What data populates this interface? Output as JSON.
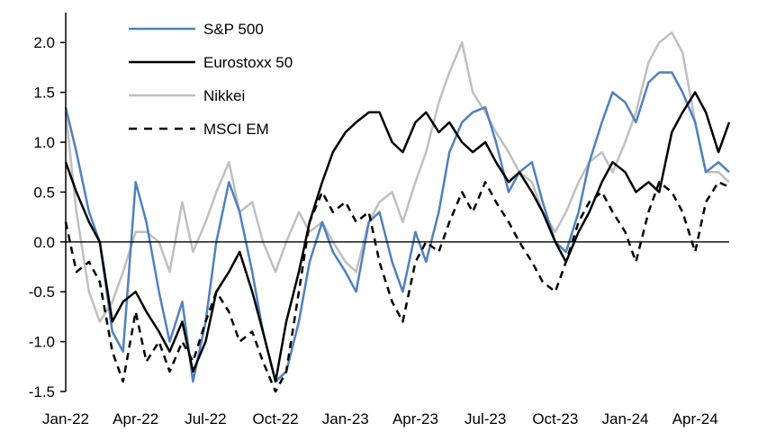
{
  "chart_data": {
    "type": "line",
    "title": "",
    "xlabel": "",
    "ylabel": "",
    "ylim": [
      -1.5,
      2.3
    ],
    "yticks": [
      "2.0",
      "1.5",
      "1.0",
      "0.5",
      "0.0",
      "-0.5",
      "-1.0",
      "-1.5"
    ],
    "ytick_values": [
      2.0,
      1.5,
      1.0,
      0.5,
      0.0,
      -0.5,
      -1.0,
      -1.5
    ],
    "xticks": [
      "Jan-22",
      "Apr-22",
      "Jul-22",
      "Oct-22",
      "Jan-23",
      "Apr-23",
      "Jul-23",
      "Oct-23",
      "Jan-24",
      "Apr-24"
    ],
    "xtick_dates": [
      "2022-01-01",
      "2022-04-01",
      "2022-07-01",
      "2022-10-01",
      "2023-01-01",
      "2023-04-01",
      "2023-07-01",
      "2023-10-01",
      "2024-01-01",
      "2024-04-01"
    ],
    "xlim": [
      "2022-01-01",
      "2024-05-15"
    ],
    "grid": false,
    "zero_line": true,
    "legend_placement": "top-left",
    "x": [
      "2022-01-01",
      "2022-01-15",
      "2022-02-01",
      "2022-02-15",
      "2022-03-01",
      "2022-03-15",
      "2022-04-01",
      "2022-04-15",
      "2022-05-01",
      "2022-05-15",
      "2022-06-01",
      "2022-06-15",
      "2022-07-01",
      "2022-07-15",
      "2022-08-01",
      "2022-08-15",
      "2022-09-01",
      "2022-09-15",
      "2022-10-01",
      "2022-10-15",
      "2022-11-01",
      "2022-11-15",
      "2022-12-01",
      "2022-12-15",
      "2023-01-01",
      "2023-01-15",
      "2023-02-01",
      "2023-02-15",
      "2023-03-01",
      "2023-03-15",
      "2023-04-01",
      "2023-04-15",
      "2023-05-01",
      "2023-05-15",
      "2023-06-01",
      "2023-06-15",
      "2023-07-01",
      "2023-07-15",
      "2023-08-01",
      "2023-08-15",
      "2023-09-01",
      "2023-09-15",
      "2023-10-01",
      "2023-10-15",
      "2023-11-01",
      "2023-11-15",
      "2023-12-01",
      "2023-12-15",
      "2024-01-01",
      "2024-01-15",
      "2024-02-01",
      "2024-02-15",
      "2024-03-01",
      "2024-03-15",
      "2024-04-01",
      "2024-04-15",
      "2024-05-01",
      "2024-05-15"
    ],
    "series": [
      {
        "name": "S&P 500",
        "color": "#4f81bd",
        "dash": "solid",
        "values": [
          1.35,
          0.9,
          0.3,
          0.0,
          -0.9,
          -1.1,
          0.6,
          0.2,
          -0.5,
          -1.0,
          -0.6,
          -1.4,
          -0.8,
          0.0,
          0.6,
          0.3,
          -0.3,
          -0.9,
          -1.4,
          -1.3,
          -0.8,
          -0.2,
          0.2,
          -0.1,
          -0.3,
          -0.5,
          0.2,
          0.3,
          -0.2,
          -0.5,
          0.1,
          -0.2,
          0.3,
          0.9,
          1.2,
          1.3,
          1.35,
          1.0,
          0.5,
          0.7,
          0.8,
          0.4,
          0.0,
          -0.1,
          0.3,
          0.8,
          1.2,
          1.5,
          1.4,
          1.2,
          1.6,
          1.7,
          1.7,
          1.5,
          1.2,
          0.7,
          0.8,
          0.7
        ]
      },
      {
        "name": "Eurostoxx 50",
        "color": "#000000",
        "dash": "solid",
        "values": [
          0.8,
          0.5,
          0.2,
          0.0,
          -0.8,
          -0.6,
          -0.5,
          -0.7,
          -0.9,
          -1.1,
          -0.8,
          -1.3,
          -1.0,
          -0.5,
          -0.3,
          -0.1,
          -0.5,
          -0.9,
          -1.4,
          -0.8,
          -0.3,
          0.2,
          0.6,
          0.9,
          1.1,
          1.2,
          1.3,
          1.3,
          1.0,
          0.9,
          1.2,
          1.3,
          1.1,
          1.2,
          1.0,
          0.9,
          1.0,
          0.8,
          0.6,
          0.7,
          0.5,
          0.3,
          0.0,
          -0.2,
          0.1,
          0.3,
          0.6,
          0.8,
          0.7,
          0.5,
          0.6,
          0.5,
          1.1,
          1.3,
          1.5,
          1.3,
          0.9,
          1.2
        ]
      },
      {
        "name": "Nikkei",
        "color": "#bfbfbf",
        "dash": "solid",
        "values": [
          1.3,
          0.3,
          -0.5,
          -0.8,
          -0.6,
          -0.3,
          0.1,
          0.1,
          0.0,
          -0.3,
          0.4,
          -0.1,
          0.2,
          0.5,
          0.8,
          0.3,
          0.4,
          0.0,
          -0.3,
          0.0,
          0.3,
          0.1,
          0.2,
          0.0,
          -0.2,
          -0.3,
          0.2,
          0.4,
          0.5,
          0.2,
          0.6,
          0.9,
          1.4,
          1.7,
          2.0,
          1.5,
          1.3,
          1.1,
          0.9,
          0.7,
          0.6,
          0.3,
          0.1,
          0.3,
          0.6,
          0.8,
          0.9,
          0.7,
          1.0,
          1.3,
          1.8,
          2.0,
          2.1,
          1.9,
          1.2,
          0.7,
          0.7,
          0.6
        ]
      },
      {
        "name": "MSCI EM",
        "color": "#000000",
        "dash": "dashed",
        "values": [
          0.2,
          -0.3,
          -0.2,
          -0.4,
          -1.1,
          -1.4,
          -0.7,
          -1.2,
          -1.0,
          -1.3,
          -1.0,
          -1.2,
          -0.8,
          -0.5,
          -0.7,
          -1.0,
          -0.9,
          -1.2,
          -1.5,
          -1.3,
          -0.5,
          0.2,
          0.5,
          0.3,
          0.4,
          0.2,
          0.3,
          -0.2,
          -0.6,
          -0.8,
          -0.2,
          0.0,
          -0.1,
          0.2,
          0.5,
          0.3,
          0.6,
          0.4,
          0.2,
          0.0,
          -0.2,
          -0.4,
          -0.5,
          -0.2,
          0.2,
          0.4,
          0.5,
          0.3,
          0.1,
          -0.2,
          0.3,
          0.6,
          0.5,
          0.3,
          -0.1,
          0.4,
          0.6,
          0.55
        ]
      }
    ]
  }
}
